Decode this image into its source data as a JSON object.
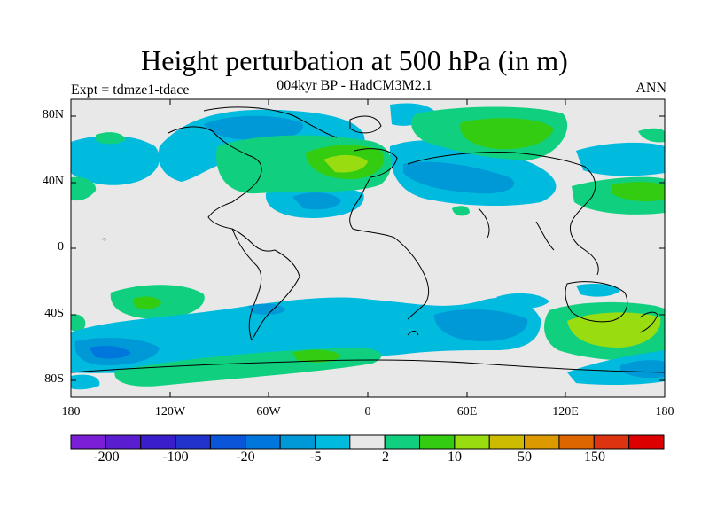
{
  "title": "Height perturbation at 500 hPa (in m)",
  "subtitle": "004kyr BP - HadCM3M2.1",
  "left_label": "Expt = tdmze1-tdace",
  "right_label": "ANN",
  "y_ticks": [
    "80N",
    "40N",
    "0",
    "40S",
    "80S"
  ],
  "x_ticks": [
    "180",
    "120W",
    "60W",
    "0",
    "60E",
    "120E",
    "180"
  ],
  "colorbar": {
    "colors": [
      "#7b1fd6",
      "#5a1ed0",
      "#3a1ecc",
      "#2233cc",
      "#0a55d8",
      "#0077dd",
      "#0099d8",
      "#00bbdd",
      "#e8e8e8",
      "#10d080",
      "#33cc11",
      "#99dd11",
      "#ccbb00",
      "#dd9900",
      "#dd6600",
      "#dd3311",
      "#dd0000"
    ],
    "labels": [
      "-200",
      "-100",
      "-20",
      "-5",
      "2",
      "10",
      "50",
      "150"
    ]
  },
  "chart_data": {
    "type": "heatmap",
    "variable": "500 hPa height perturbation",
    "units": "m",
    "xlim": [
      -180,
      180
    ],
    "ylim": [
      -90,
      90
    ],
    "color_levels": [
      "-200",
      "-100",
      "-20",
      "-5",
      "2",
      "10",
      "50",
      "150"
    ],
    "features": [
      {
        "region": "North Atlantic / Western Europe",
        "sign": "positive",
        "max_level": "10"
      },
      {
        "region": "Siberia / Arctic",
        "sign": "positive",
        "max_level": "10"
      },
      {
        "region": "South Pacific near New Zealand",
        "sign": "positive",
        "max_level": "10"
      },
      {
        "region": "Greenland / Canada",
        "sign": "negative",
        "max_level": "-20"
      },
      {
        "region": "Central Asia",
        "sign": "negative",
        "max_level": "-20"
      },
      {
        "region": "South Pacific (160W-140W, 60S)",
        "sign": "negative",
        "max_level": "-20"
      },
      {
        "region": "Southern Indian Ocean",
        "sign": "negative",
        "max_level": "-20"
      }
    ]
  }
}
